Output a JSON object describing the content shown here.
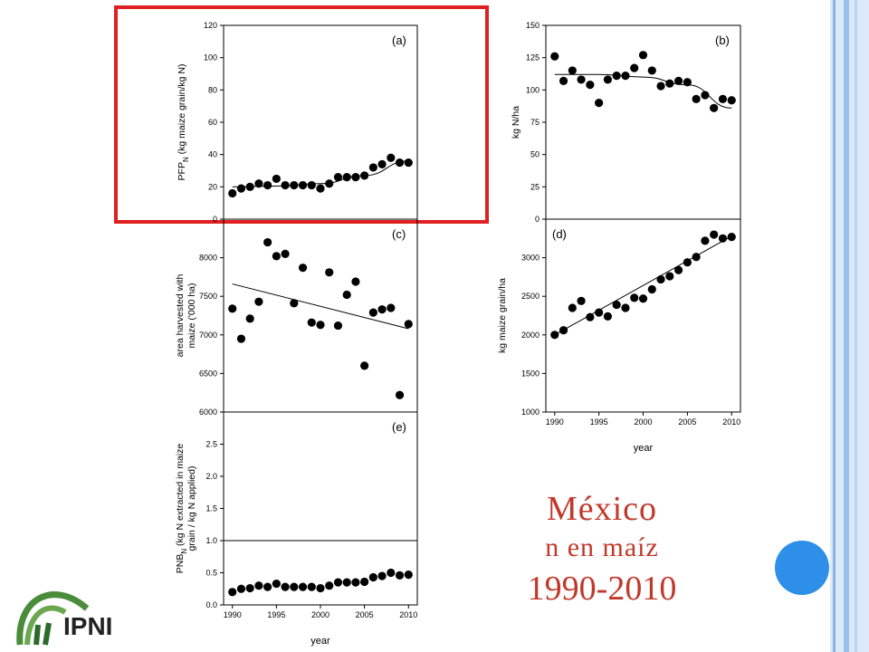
{
  "title": {
    "line1": "México",
    "line2": "n en maíz",
    "line3": "1990-2010"
  },
  "logo": {
    "text": "IPNI"
  },
  "colors": {
    "title": "#c0392b",
    "highlight": "#e02020",
    "marker": "#000000",
    "accent_circle": "#2d8fe8"
  },
  "chart_data": [
    {
      "id": "a",
      "type": "scatter",
      "panel_label": "(a)",
      "ylabel": "PFP_N (kg maize grain/kg N)",
      "ylim": [
        0,
        120
      ],
      "yticks": [
        0,
        20,
        40,
        60,
        80,
        100,
        120
      ],
      "x": [
        1990,
        1991,
        1992,
        1993,
        1994,
        1995,
        1996,
        1997,
        1998,
        1999,
        2000,
        2001,
        2002,
        2003,
        2004,
        2005,
        2006,
        2007,
        2008,
        2009,
        2010
      ],
      "y": [
        16,
        19,
        20,
        22,
        21,
        25,
        21,
        21,
        21,
        21,
        19,
        22,
        26,
        26,
        26,
        27,
        32,
        34,
        38,
        35,
        35
      ],
      "trend": {
        "type": "curve",
        "x": [
          1990,
          1995,
          2000,
          2005,
          2010
        ],
        "y": [
          20,
          20.5,
          22,
          27,
          36
        ]
      }
    },
    {
      "id": "b",
      "type": "scatter",
      "panel_label": "(b)",
      "ylabel": "kg N/ha",
      "ylim": [
        0,
        150
      ],
      "yticks": [
        0,
        25,
        50,
        75,
        100,
        125,
        150
      ],
      "x": [
        1990,
        1991,
        1992,
        1993,
        1994,
        1995,
        1996,
        1997,
        1998,
        1999,
        2000,
        2001,
        2002,
        2003,
        2004,
        2005,
        2006,
        2007,
        2008,
        2009,
        2010
      ],
      "y": [
        126,
        107,
        115,
        108,
        104,
        90,
        108,
        111,
        111,
        117,
        127,
        115,
        103,
        105,
        107,
        106,
        93,
        96,
        86,
        93,
        92
      ],
      "trend": {
        "type": "curve",
        "x": [
          1990,
          1995,
          2000,
          2005,
          2010
        ],
        "y": [
          112,
          112,
          110,
          104,
          86
        ]
      }
    },
    {
      "id": "c",
      "type": "scatter",
      "panel_label": "(c)",
      "ylabel": "area harvested with maize ('000 ha)",
      "ylim": [
        6000,
        8500
      ],
      "yticks": [
        6000,
        6500,
        7000,
        7500,
        8000
      ],
      "x": [
        1990,
        1991,
        1992,
        1993,
        1994,
        1995,
        1996,
        1997,
        1998,
        1999,
        2000,
        2001,
        2002,
        2003,
        2004,
        2005,
        2006,
        2007,
        2008,
        2009,
        2010
      ],
      "y": [
        7340,
        6950,
        7210,
        7430,
        8200,
        8020,
        8050,
        7410,
        7870,
        7160,
        7130,
        7810,
        7120,
        7520,
        7690,
        6600,
        7290,
        7330,
        7350,
        6220,
        7140
      ],
      "trend": {
        "type": "line",
        "x": [
          1990,
          2010
        ],
        "y": [
          7660,
          7080
        ]
      }
    },
    {
      "id": "d",
      "type": "scatter",
      "panel_label": "(d)",
      "ylabel": "kg maize grain/ha",
      "xlabel": "year",
      "ylim": [
        1000,
        3500
      ],
      "yticks": [
        1000,
        1500,
        2000,
        2500,
        3000
      ],
      "xlim": [
        1989,
        2011
      ],
      "xticks": [
        1990,
        1995,
        2000,
        2005,
        2010
      ],
      "x": [
        1990,
        1991,
        1992,
        1993,
        1994,
        1995,
        1996,
        1997,
        1998,
        1999,
        2000,
        2001,
        2002,
        2003,
        2004,
        2005,
        2006,
        2007,
        2008,
        2009,
        2010
      ],
      "y": [
        2000,
        2060,
        2350,
        2440,
        2230,
        2290,
        2240,
        2390,
        2350,
        2480,
        2470,
        2590,
        2720,
        2760,
        2840,
        2940,
        3010,
        3220,
        3300,
        3250,
        3270
      ],
      "trend": {
        "type": "line",
        "x": [
          1990,
          2010
        ],
        "y": [
          2000,
          3280
        ]
      }
    },
    {
      "id": "e",
      "type": "scatter",
      "panel_label": "(e)",
      "ylabel": "PNB_N (kg N extracted in maize grain / kg N applied)",
      "xlabel": "year",
      "ylim": [
        0,
        3.0
      ],
      "yticks": [
        0.0,
        0.5,
        1.0,
        1.5,
        2.0,
        2.5
      ],
      "xlim": [
        1989,
        2011
      ],
      "xticks": [
        1990,
        1995,
        2000,
        2005,
        2010
      ],
      "refline": 1.0,
      "x": [
        1990,
        1991,
        1992,
        1993,
        1994,
        1995,
        1996,
        1997,
        1998,
        1999,
        2000,
        2001,
        2002,
        2003,
        2004,
        2005,
        2006,
        2007,
        2008,
        2009,
        2010
      ],
      "y": [
        0.2,
        0.25,
        0.26,
        0.3,
        0.28,
        0.33,
        0.28,
        0.28,
        0.28,
        0.28,
        0.26,
        0.3,
        0.35,
        0.35,
        0.35,
        0.36,
        0.43,
        0.45,
        0.5,
        0.46,
        0.47
      ]
    }
  ]
}
